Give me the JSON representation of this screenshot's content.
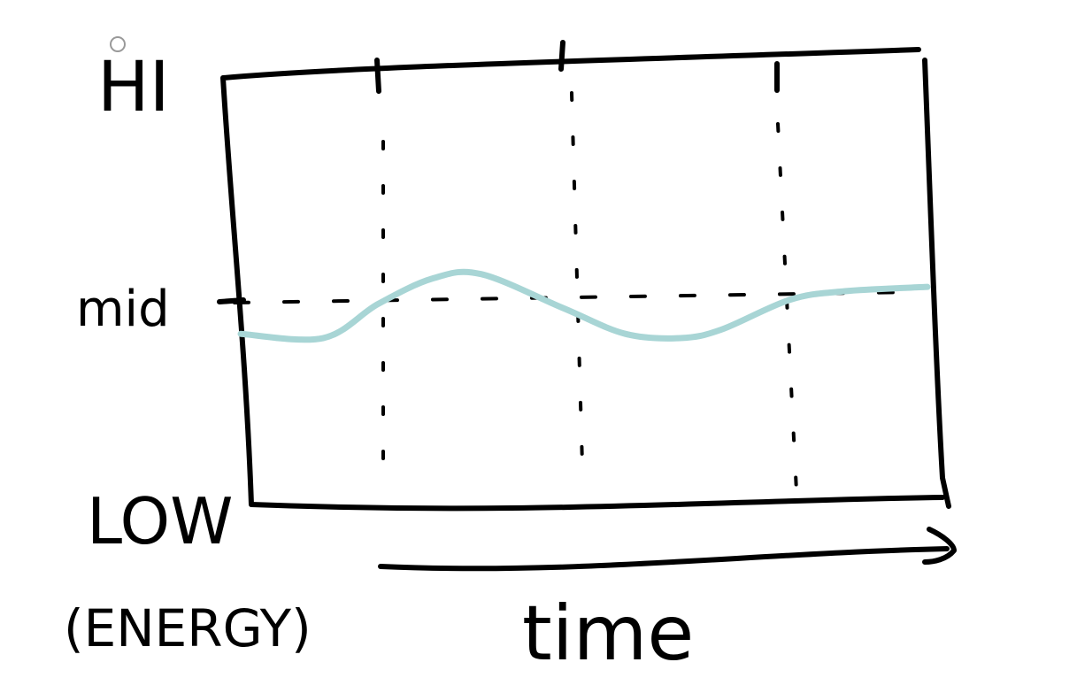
{
  "chart_data": {
    "type": "line",
    "title": "",
    "xlabel": "time",
    "ylabel": "(ENERGY)",
    "y_tick_labels": {
      "high": "HI",
      "mid": "mid",
      "low": "LOW"
    },
    "y_scale": [
      "LOW",
      "mid",
      "HI"
    ],
    "ylim": [
      0,
      1
    ],
    "xlim": [
      0,
      1
    ],
    "grid": "dashed vertical lines at x = 0.2, 0.47, 0.78 and a dashed horizontal line at mid",
    "x_arrow": true,
    "series": [
      {
        "color": "#a8d5d5",
        "x": [
          0,
          0.12,
          0.2,
          0.28,
          0.35,
          0.47,
          0.56,
          0.64,
          0.7,
          0.8,
          0.88,
          1.0
        ],
        "y": [
          0.4,
          0.39,
          0.47,
          0.53,
          0.54,
          0.46,
          0.4,
          0.39,
          0.41,
          0.48,
          0.5,
          0.51
        ]
      }
    ]
  }
}
